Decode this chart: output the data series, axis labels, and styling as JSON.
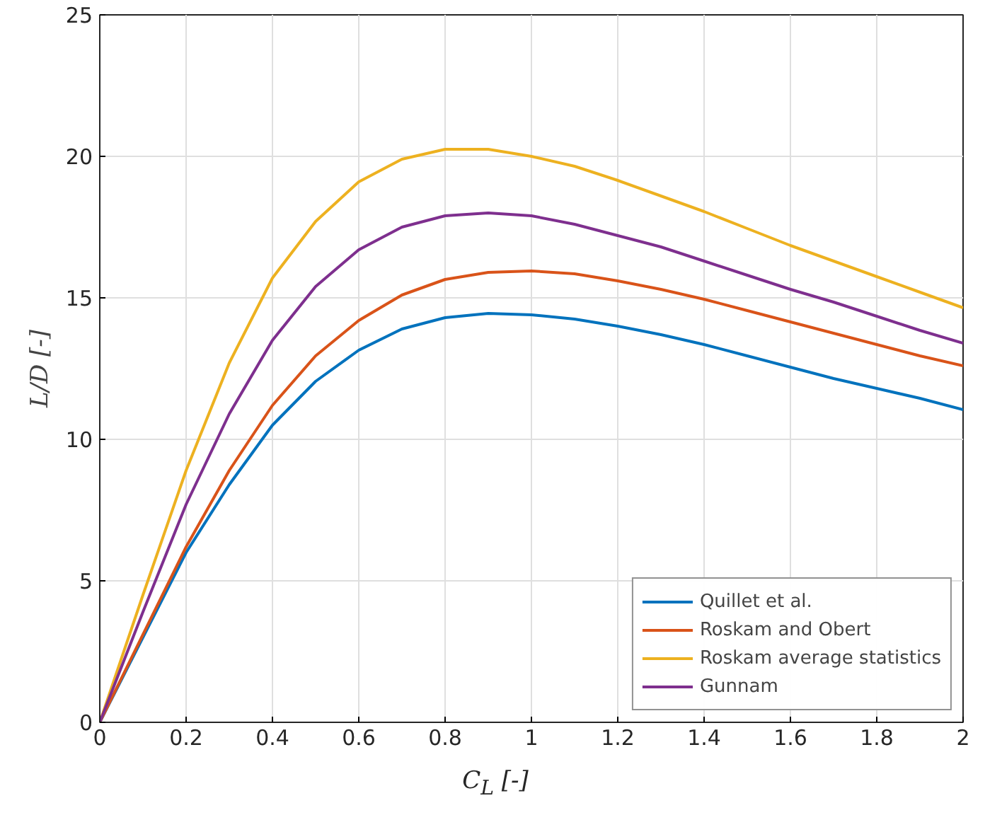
{
  "chart_data": {
    "type": "line",
    "xlabel": "C$_{L}$ [-]",
    "ylabel": "L/D [-]",
    "x": [
      0,
      0.1,
      0.2,
      0.3,
      0.4,
      0.5,
      0.6,
      0.7,
      0.8,
      0.9,
      1.0,
      1.1,
      1.2,
      1.3,
      1.4,
      1.5,
      1.6,
      1.7,
      1.8,
      1.9,
      2.0
    ],
    "series": [
      {
        "name": "Quillet et al.",
        "color": "#0072bd",
        "values": [
          0,
          3.0,
          6.0,
          8.4,
          10.5,
          12.05,
          13.15,
          13.9,
          14.3,
          14.45,
          14.4,
          14.25,
          14.0,
          13.7,
          13.35,
          12.95,
          12.55,
          12.15,
          11.8,
          11.45,
          11.05
        ]
      },
      {
        "name": "Roskam and Obert",
        "color": "#d95319",
        "values": [
          0,
          3.1,
          6.2,
          8.9,
          11.2,
          12.95,
          14.2,
          15.1,
          15.65,
          15.9,
          15.95,
          15.85,
          15.6,
          15.3,
          14.95,
          14.55,
          14.15,
          13.75,
          13.35,
          12.95,
          12.6
        ]
      },
      {
        "name": "Roskam average statistics",
        "color": "#edb120",
        "values": [
          0,
          4.5,
          8.9,
          12.7,
          15.7,
          17.7,
          19.1,
          19.9,
          20.25,
          20.25,
          20.0,
          19.65,
          19.15,
          18.6,
          18.05,
          17.45,
          16.85,
          16.3,
          15.75,
          15.2,
          14.65
        ]
      },
      {
        "name": "Gunnam",
        "color": "#7e2f8e",
        "values": [
          0,
          3.9,
          7.7,
          10.9,
          13.5,
          15.4,
          16.7,
          17.5,
          17.9,
          18.0,
          17.9,
          17.6,
          17.2,
          16.8,
          16.3,
          15.8,
          15.3,
          14.85,
          14.35,
          13.85,
          13.4
        ]
      }
    ],
    "xlim": [
      0,
      2
    ],
    "ylim": [
      0,
      25
    ],
    "xticks": [
      0,
      0.2,
      0.4,
      0.6,
      0.8,
      1,
      1.2,
      1.4,
      1.6,
      1.8,
      2
    ],
    "yticks": [
      0,
      5,
      10,
      15,
      20,
      25
    ],
    "grid": true,
    "legend": "bottom right",
    "line_style": "solid",
    "marker": "none"
  }
}
